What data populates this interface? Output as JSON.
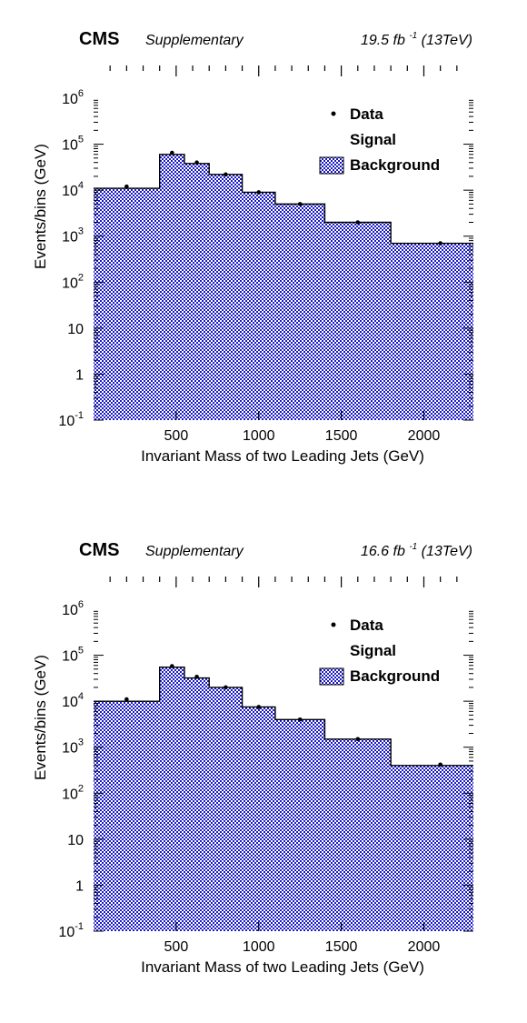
{
  "chart_data": [
    {
      "type": "bar",
      "experiment": "CMS",
      "label": "Supplementary",
      "luminosity": "19.5 fb",
      "luminosity_exp": "-1",
      "energy": "(13TeV)",
      "xlabel": "Invariant Mass of two Leading Jets (GeV)",
      "ylabel": "Events/bins (GeV)",
      "xlim": [
        0,
        2300
      ],
      "ylim": [
        0.1,
        1000000
      ],
      "yscale": "log",
      "xticks": [
        500,
        1000,
        1500,
        2000
      ],
      "yticks": [
        {
          "value": 0.1,
          "base": "10",
          "exp": "-1"
        },
        {
          "value": 1,
          "base": "1",
          "exp": ""
        },
        {
          "value": 10,
          "base": "10",
          "exp": ""
        },
        {
          "value": 100,
          "base": "10",
          "exp": "2"
        },
        {
          "value": 1000,
          "base": "10",
          "exp": "3"
        },
        {
          "value": 10000,
          "base": "10",
          "exp": "4"
        },
        {
          "value": 100000,
          "base": "10",
          "exp": "5"
        },
        {
          "value": 1000000,
          "base": "10",
          "exp": "6"
        }
      ],
      "legend": {
        "position": "top-right",
        "entries": [
          "Data",
          "Signal",
          "Background"
        ]
      },
      "colors": {
        "background": "#1a1ac8"
      },
      "bins": [
        {
          "low": 0,
          "high": 400,
          "background": 11000,
          "data": 12000,
          "data_x": 200
        },
        {
          "low": 400,
          "high": 550,
          "background": 60000,
          "data": 65000,
          "data_x": 475
        },
        {
          "low": 550,
          "high": 700,
          "background": 38000,
          "data": 40000,
          "data_x": 625
        },
        {
          "low": 700,
          "high": 900,
          "background": 22000,
          "data": 22000,
          "data_x": 800
        },
        {
          "low": 900,
          "high": 1100,
          "background": 9000,
          "data": 9000,
          "data_x": 1000
        },
        {
          "low": 1100,
          "high": 1400,
          "background": 5000,
          "data": 5000,
          "data_x": 1250
        },
        {
          "low": 1400,
          "high": 1800,
          "background": 2000,
          "data": 2000,
          "data_x": 1600
        },
        {
          "low": 1800,
          "high": 2300,
          "background": 700,
          "data": 700,
          "data_x": 2100
        }
      ]
    },
    {
      "type": "bar",
      "experiment": "CMS",
      "label": "Supplementary",
      "luminosity": "16.6 fb",
      "luminosity_exp": "-1",
      "energy": "(13TeV)",
      "xlabel": "Invariant Mass of two Leading Jets (GeV)",
      "ylabel": "Events/bins (GeV)",
      "xlim": [
        0,
        2300
      ],
      "ylim": [
        0.1,
        1000000
      ],
      "yscale": "log",
      "xticks": [
        500,
        1000,
        1500,
        2000
      ],
      "yticks": [
        {
          "value": 0.1,
          "base": "10",
          "exp": "-1"
        },
        {
          "value": 1,
          "base": "1",
          "exp": ""
        },
        {
          "value": 10,
          "base": "10",
          "exp": ""
        },
        {
          "value": 100,
          "base": "10",
          "exp": "2"
        },
        {
          "value": 1000,
          "base": "10",
          "exp": "3"
        },
        {
          "value": 10000,
          "base": "10",
          "exp": "4"
        },
        {
          "value": 100000,
          "base": "10",
          "exp": "5"
        },
        {
          "value": 1000000,
          "base": "10",
          "exp": "6"
        }
      ],
      "legend": {
        "position": "top-right",
        "entries": [
          "Data",
          "Signal",
          "Background"
        ]
      },
      "colors": {
        "background": "#1a1ac8"
      },
      "bins": [
        {
          "low": 0,
          "high": 400,
          "background": 10000,
          "data": 11000,
          "data_x": 200
        },
        {
          "low": 400,
          "high": 550,
          "background": 55000,
          "data": 58000,
          "data_x": 475
        },
        {
          "low": 550,
          "high": 700,
          "background": 32000,
          "data": 34000,
          "data_x": 625
        },
        {
          "low": 700,
          "high": 900,
          "background": 20000,
          "data": 20000,
          "data_x": 800
        },
        {
          "low": 900,
          "high": 1100,
          "background": 7500,
          "data": 7500,
          "data_x": 1000
        },
        {
          "low": 1100,
          "high": 1400,
          "background": 4000,
          "data": 4000,
          "data_x": 1250
        },
        {
          "low": 1400,
          "high": 1800,
          "background": 1500,
          "data": 1500,
          "data_x": 1600
        },
        {
          "low": 1800,
          "high": 2300,
          "background": 400,
          "data": 420,
          "data_x": 2100
        }
      ]
    }
  ]
}
